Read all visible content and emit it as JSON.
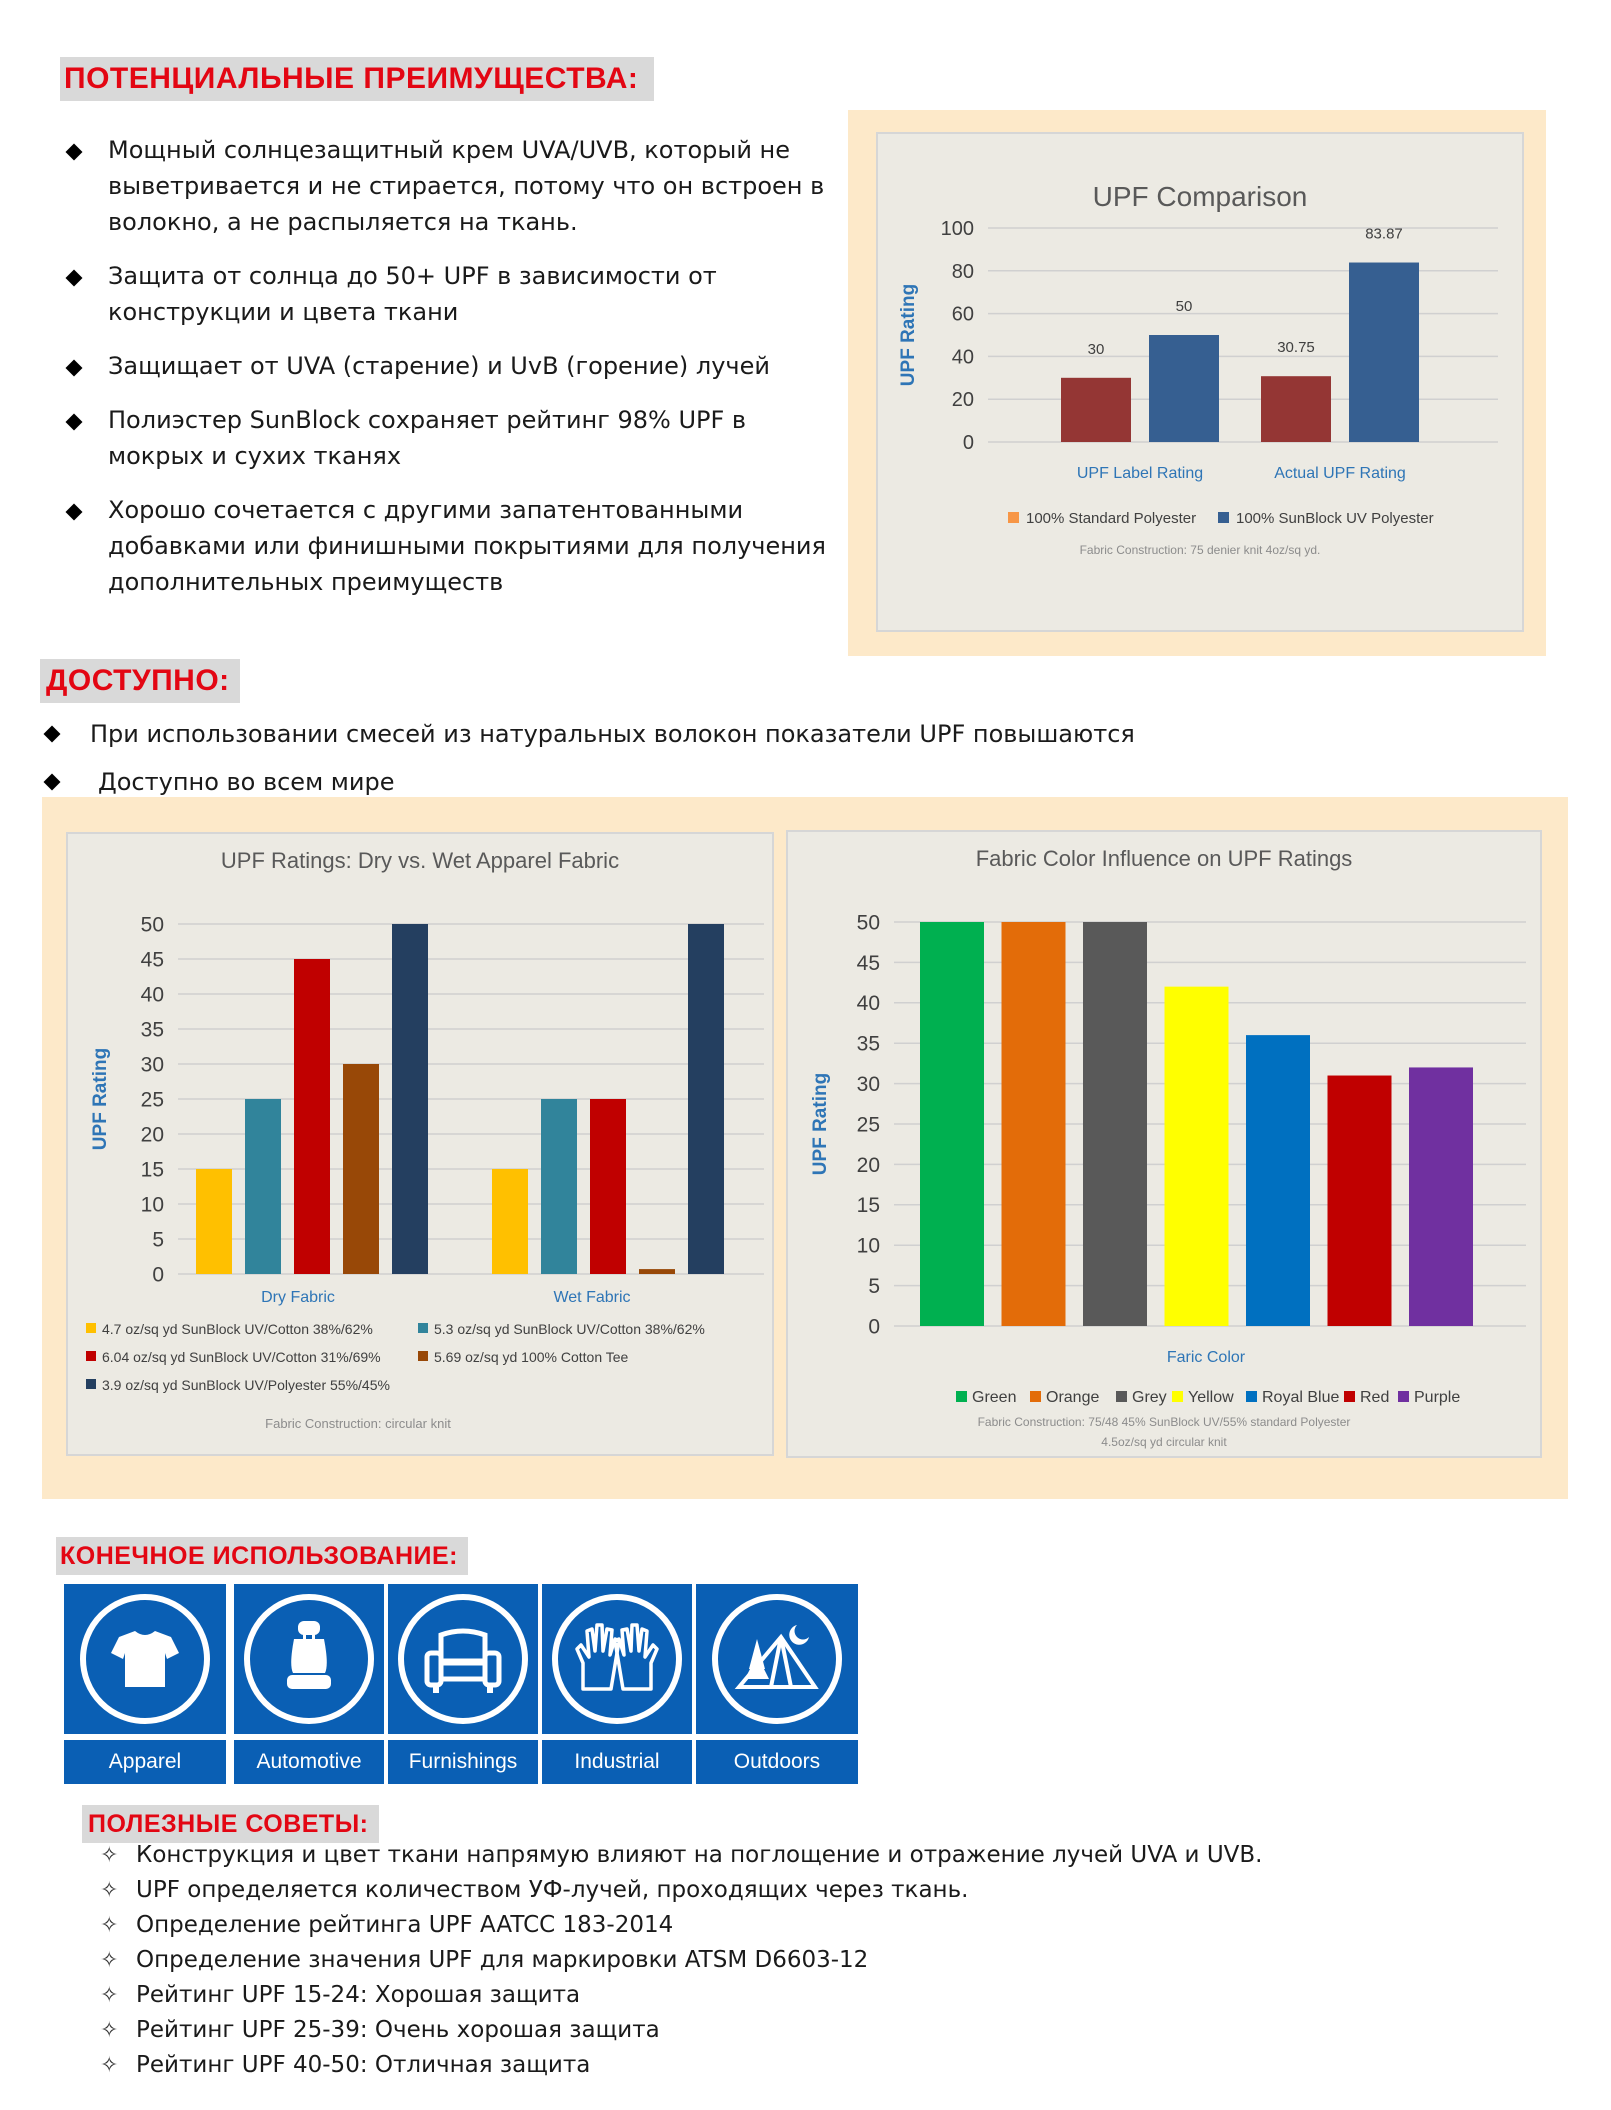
{
  "benefits": {
    "heading": "ПОТЕНЦИАЛЬНЫЕ ПРЕИМУЩЕСТВА:",
    "items": [
      [
        "Мощный солнцезащитный крем UVA/UVB, который не",
        "выветривается и не стирается, потому что он встроен в",
        "волокно, а не распыляется на ткань."
      ],
      [
        "Защита от солнца до 50+ UPF в зависимости от",
        "конструкции и цвета ткани"
      ],
      [
        "Защищает от UVA (старение) и UvB (горение) лучей"
      ],
      [
        "Полиэстер SunBlock сохраняет рейтинг 98% UPF в",
        "мокрых и сухих тканях"
      ],
      [
        "Хорошо сочетается с другими запатентованными",
        "добавками или финишными покрытиями для получения",
        "дополнительных преимуществ"
      ]
    ]
  },
  "available": {
    "heading": "ДОСТУПНО:",
    "items": [
      "При использовании смесей из натуральных волокон показатели UPF повышаются",
      "Доступно во всем мире"
    ]
  },
  "end_use": {
    "heading": "КОНЕЧНОЕ ИСПОЛЬЗОВАНИЕ:",
    "items": [
      {
        "label": "Apparel",
        "icon": "tshirt-icon"
      },
      {
        "label": "Automotive",
        "icon": "car-seat-icon"
      },
      {
        "label": "Furnishings",
        "icon": "armchair-icon"
      },
      {
        "label": "Industrial",
        "icon": "gloves-icon"
      },
      {
        "label": "Outdoors",
        "icon": "tent-icon"
      }
    ],
    "color": "#0a5fb4"
  },
  "tips": {
    "heading": "ПОЛЕЗНЫЕ СОВЕТЫ:",
    "items": [
      "Конструкция и цвет ткани напрямую влияют на поглощение и отражение лучей UVA и UVB.",
      "UPF определяется количеством УФ-лучей, проходящих через ткань.",
      "Определение рейтинга UPF AATCC 183-2014",
      "Определение значения UPF для маркировки ATSM D6603-12",
      "Рейтинг UPF 15-24: Хорошая защита",
      "Рейтинг UPF 25-39: Очень хорошая защита",
      "Рейтинг UPF 40-50: Отличная защита"
    ]
  },
  "chart_data": [
    {
      "type": "bar",
      "title": "UPF Comparison",
      "ylabel": "UPF Rating",
      "ylim": [
        0,
        100
      ],
      "yticks": [
        0,
        20,
        40,
        60,
        80,
        100
      ],
      "categories": [
        "UPF Label Rating",
        "Actual UPF Rating"
      ],
      "series": [
        {
          "name": "100% Standard Polyester",
          "values": [
            30,
            30.75
          ],
          "color": "#943634",
          "legend_color": "#f79646"
        },
        {
          "name": "100% SunBlock UV Polyester",
          "values": [
            50,
            83.87
          ],
          "color": "#365f91",
          "legend_color": "#365f91"
        }
      ],
      "data_labels": [
        "30",
        "30.75",
        "50",
        "83.87"
      ],
      "note": "Fabric Construction: 75 denier knit 4oz/sq yd.",
      "grid": true,
      "legend": "bottom"
    },
    {
      "type": "bar",
      "title": "UPF Ratings: Dry vs. Wet Apparel Fabric",
      "ylabel": "UPF Rating",
      "ylim": [
        0,
        50
      ],
      "yticks": [
        0,
        5,
        10,
        15,
        20,
        25,
        30,
        35,
        40,
        45,
        50
      ],
      "categories": [
        "Dry Fabric",
        "Wet Fabric"
      ],
      "series": [
        {
          "name": "4.7 oz/sq yd SunBlock UV/Cotton 38%/62%",
          "values": [
            15,
            15
          ],
          "color": "#ffc000"
        },
        {
          "name": "5.3 oz/sq yd SunBlock UV/Cotton 38%/62%",
          "values": [
            25,
            25
          ],
          "color": "#31849b"
        },
        {
          "name": "6.04 oz/sq yd SunBlock UV/Cotton 31%/69%",
          "values": [
            45,
            25
          ],
          "color": "#c00000"
        },
        {
          "name": "5.69 oz/sq yd 100% Cotton Tee",
          "values": [
            30,
            0.7
          ],
          "color": "#984807"
        },
        {
          "name": "3.9 oz/sq yd SunBlock UV/Polyester 55%/45%",
          "values": [
            50,
            50
          ],
          "color": "#243f60"
        }
      ],
      "note": "Fabric Construction: circular knit",
      "grid": true,
      "legend": "bottom"
    },
    {
      "type": "bar",
      "title": "Fabric Color Influence on UPF Ratings",
      "ylabel": "UPF Rating",
      "xlabel": "Faric Color",
      "ylim": [
        0,
        50
      ],
      "yticks": [
        0,
        5,
        10,
        15,
        20,
        25,
        30,
        35,
        40,
        45,
        50
      ],
      "categories": [
        "Green",
        "Orange",
        "Grey",
        "Yellow",
        "Royal Blue",
        "Red",
        "Purple"
      ],
      "values": [
        50,
        50,
        50,
        42,
        36,
        31,
        32
      ],
      "colors": [
        "#00b050",
        "#e36c09",
        "#595959",
        "#ffff00",
        "#0070c0",
        "#c00000",
        "#7030a0"
      ],
      "note": [
        "Fabric Construction:  75/48 45% SunBlock UV/55% standard Polyester",
        "4.5oz/sq yd circular knit"
      ],
      "grid": true,
      "legend": "bottom"
    }
  ]
}
